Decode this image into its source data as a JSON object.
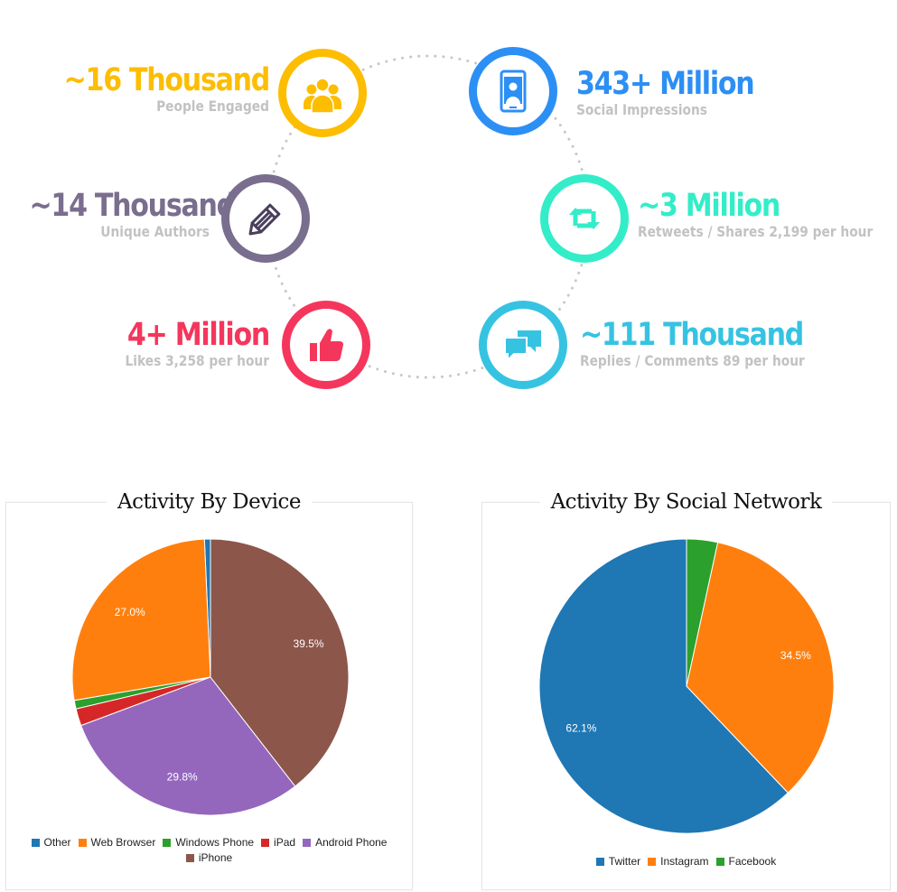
{
  "stats": [
    {
      "value": "~16  Thousand",
      "label": "People Engaged",
      "color": "#fdbd00",
      "icon": "people-group-icon"
    },
    {
      "value": "343+ Million",
      "label": "Social Impressions",
      "color": "#2c8ff4",
      "icon": "smartphone-user-icon"
    },
    {
      "value": "~14 Thousand",
      "label": "Unique Authors",
      "color": "#7a6e8e",
      "icon": "pencil-icon"
    },
    {
      "value": "~3 Million",
      "label": "Retweets / Shares 2,199 per hour",
      "color": "#33edc8",
      "icon": "retweet-icon"
    },
    {
      "value": "4+ Million",
      "label": "Likes 3,258 per hour",
      "color": "#f5365c",
      "icon": "thumbs-up-icon"
    },
    {
      "value": "~111 Thousand",
      "label": "Replies / Comments 89 per hour",
      "color": "#36c3e2",
      "icon": "chat-bubbles-icon"
    }
  ],
  "chart_data": [
    {
      "type": "pie",
      "title": "Activity By Device",
      "categories": [
        "Other",
        "Web Browser",
        "Windows Phone",
        "iPad",
        "Android Phone",
        "iPhone"
      ],
      "values": [
        0.7,
        27.0,
        1.0,
        2.0,
        29.8,
        39.5
      ],
      "data_labels": [
        "",
        "27.0%",
        "",
        "",
        "29.8%",
        "39.5%"
      ],
      "colors": [
        "#1f77b4",
        "#ff7f0e",
        "#2ca02c",
        "#d62728",
        "#9467bd",
        "#8c564b"
      ],
      "legend_position": "bottom"
    },
    {
      "type": "pie",
      "title": "Activity By Social Network",
      "categories": [
        "Twitter",
        "Instagram",
        "Facebook"
      ],
      "values": [
        62.1,
        34.5,
        3.4
      ],
      "data_labels": [
        "62.1%",
        "34.5%",
        ""
      ],
      "colors": [
        "#1f77b4",
        "#ff7f0e",
        "#2ca02c"
      ],
      "legend_position": "bottom"
    }
  ]
}
